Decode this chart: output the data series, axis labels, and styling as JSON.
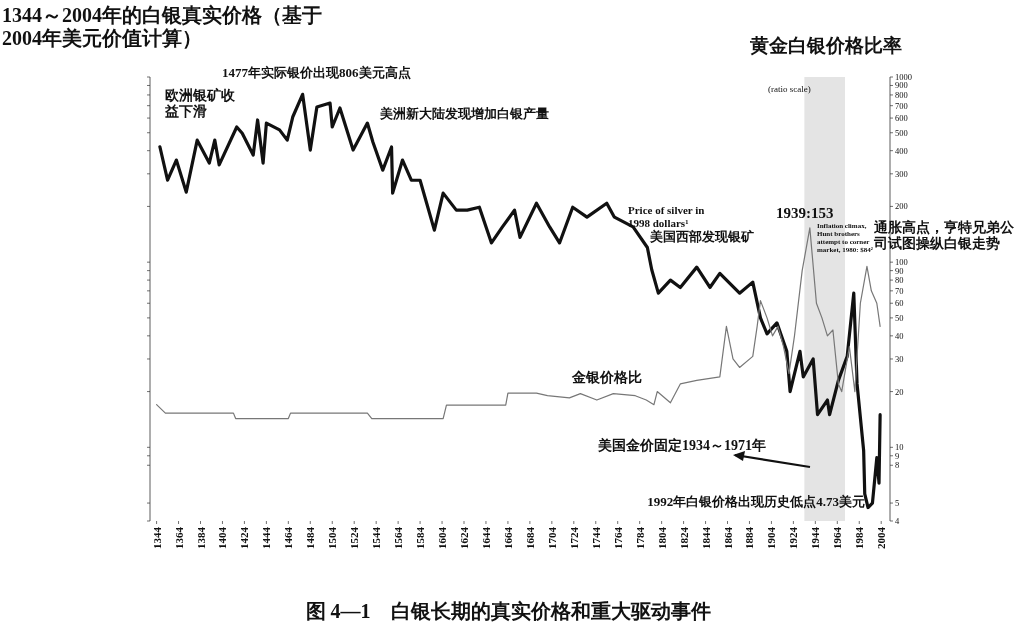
{
  "chart_data": {
    "type": "line",
    "title": "图 4—1　白银长期的真实价格和重大驱动事件",
    "ylabel": "1344～2004年的白银真实价格（基于2004年美元价值计算）",
    "log": true,
    "xlim": [
      1338,
      2012
    ],
    "xticks": [
      1344,
      1364,
      1384,
      1404,
      1424,
      1444,
      1464,
      1484,
      1504,
      1524,
      1544,
      1564,
      1584,
      1604,
      1624,
      1644,
      1664,
      1684,
      1704,
      1724,
      1744,
      1764,
      1784,
      1804,
      1824,
      1844,
      1864,
      1884,
      1904,
      1924,
      1944,
      1964,
      1984,
      2004
    ],
    "ylim": [
      4,
      1000
    ],
    "yticks": [
      4,
      5,
      8,
      9,
      10,
      20,
      30,
      40,
      50,
      60,
      70,
      80,
      90,
      100,
      200,
      300,
      400,
      500,
      600,
      700,
      800,
      900,
      1000
    ],
    "grid": false,
    "bands": [
      {
        "axis": "x",
        "from": 1934,
        "to": 1971,
        "label": "美国金价固定1934～1971年",
        "color": "#e4e4e4"
      }
    ],
    "series": [
      {
        "name": "Price of silver in 1998 dollars¹",
        "color": "#111111",
        "x": [
          1347,
          1354,
          1362,
          1371,
          1381,
          1392,
          1397,
          1401,
          1417,
          1422,
          1432,
          1436,
          1441,
          1444,
          1456,
          1463,
          1468,
          1477,
          1484,
          1490,
          1502,
          1504,
          1511,
          1523,
          1536,
          1541,
          1550,
          1558,
          1559,
          1568,
          1576,
          1584,
          1590,
          1597,
          1605,
          1617,
          1627,
          1638,
          1649,
          1659,
          1670,
          1675,
          1690,
          1702,
          1711,
          1723,
          1736,
          1754,
          1761,
          1778,
          1791,
          1795,
          1801,
          1812,
          1821,
          1836,
          1848,
          1857,
          1875,
          1887,
          1894,
          1900,
          1909,
          1918,
          1921,
          1930,
          1933,
          1942,
          1946,
          1955,
          1957,
          1965,
          1973,
          1979,
          1982,
          1988,
          1989,
          1992,
          1996,
          2000,
          2002,
          2003
        ],
        "values": [
          420,
          277,
          356,
          239,
          456,
          343,
          456,
          335,
          537,
          497,
          379,
          586,
          343,
          564,
          518,
          456,
          608,
          806,
          403,
          689,
          723,
          537,
          680,
          403,
          564,
          446,
          314,
          419,
          236,
          356,
          277,
          277,
          208,
          149,
          236,
          191,
          191,
          198,
          127,
          155,
          191,
          136,
          208,
          155,
          127,
          198,
          175,
          208,
          175,
          155,
          120,
          91,
          68,
          80,
          73,
          94,
          73,
          87,
          68,
          78,
          50,
          41,
          47,
          33,
          20,
          33,
          24,
          30,
          15,
          18,
          15,
          23,
          31,
          68,
          22,
          9.6,
          5.6,
          4.73,
          5.0,
          8.8,
          6.4,
          15
        ]
      },
      {
        "name": "金银价格比",
        "color": "#777777",
        "x": [
          1344,
          1352,
          1414,
          1416,
          1464,
          1466,
          1536,
          1540,
          1605,
          1608,
          1662,
          1664,
          1690,
          1700,
          1720,
          1730,
          1745,
          1760,
          1780,
          1790,
          1797,
          1800,
          1812,
          1821,
          1836,
          1857,
          1863,
          1869,
          1875,
          1887,
          1891,
          1894,
          1900,
          1905,
          1910,
          1915,
          1920,
          1925,
          1932,
          1939,
          1945,
          1950,
          1955,
          1960,
          1965,
          1968,
          1975,
          1980,
          1985,
          1991,
          1995,
          2000,
          2003
        ],
        "values": [
          17,
          15.3,
          15.3,
          14.3,
          14.3,
          15.3,
          15.3,
          14.3,
          14.3,
          16.9,
          16.9,
          19.6,
          19.6,
          19,
          18.5,
          19.5,
          18,
          19.5,
          19,
          18,
          17,
          20,
          17.4,
          22,
          23,
          24,
          45,
          30,
          27,
          31,
          45,
          62,
          50,
          40,
          45,
          35,
          25,
          40,
          90,
          153,
          60,
          50,
          40,
          43,
          22,
          20,
          35,
          20,
          60,
          95,
          70,
          60,
          45
        ]
      }
    ],
    "annotations": [
      "欧洲银矿收益下滑",
      "1477年实际银价出现806美元高点",
      "美洲新大陆发现增加白银产量",
      "美国西部发现银矿",
      "1939:153",
      "Inflation climax, Hunt brothers attempt to corner market, 1980: $84²",
      "通胀高点，亨特兄弟公司试图操纵白银走势",
      {
        "text": "1992年白银价格出现历史低点4.73美元",
        "x": 1992,
        "y": 4.73
      },
      "(ratio scale)",
      "黄金白银价格比率"
    ]
  }
}
